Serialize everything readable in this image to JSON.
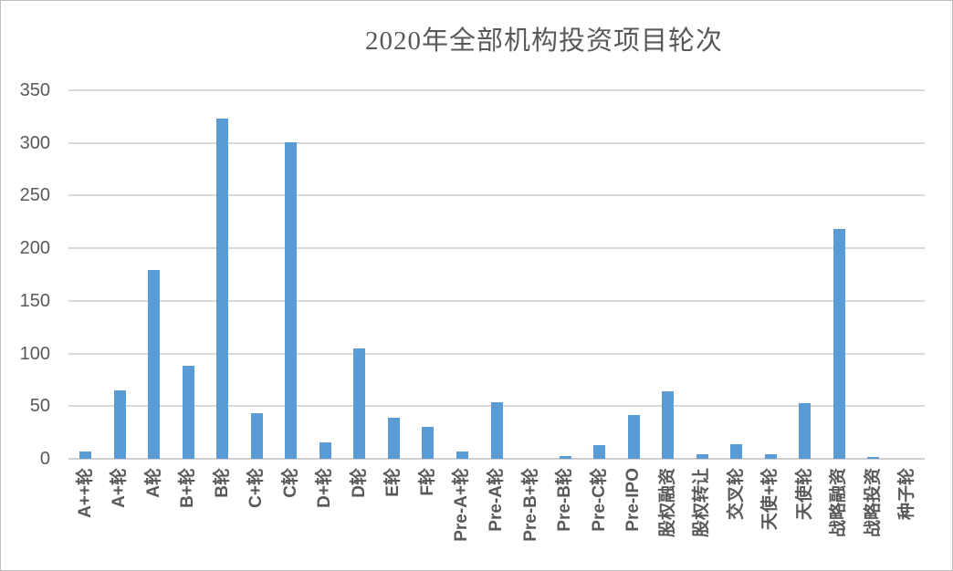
{
  "chart": {
    "title": "2020年全部机构投资项目轮次"
  },
  "chart_data": {
    "type": "bar",
    "title": "2020年全部机构投资项目轮次",
    "categories": [
      "A++轮",
      "A+轮",
      "A轮",
      "B+轮",
      "B轮",
      "C+轮",
      "C轮",
      "D+轮",
      "D轮",
      "E轮",
      "F轮",
      "Pre-A+轮",
      "Pre-A轮",
      "Pre-B+轮",
      "Pre-B轮",
      "Pre-C轮",
      "Pre-IPO",
      "股权融资",
      "股权转让",
      "交叉轮",
      "天使+轮",
      "天使轮",
      "战略融资",
      "战略投资",
      "种子轮"
    ],
    "values": [
      7,
      65,
      179,
      88,
      323,
      43,
      301,
      16,
      105,
      39,
      30,
      7,
      54,
      0,
      3,
      13,
      42,
      64,
      4,
      14,
      4,
      53,
      218,
      2,
      0
    ],
    "xlabel": "",
    "ylabel": "",
    "ylim": [
      0,
      350
    ],
    "ytick_step": 50,
    "yticks": [
      0,
      50,
      100,
      150,
      200,
      250,
      300,
      350
    ],
    "grid": true,
    "legend": false,
    "bar_color": "#5B9BD5",
    "gridline_color": "#D9D9D9",
    "axis_line_color": "#CFCFCF",
    "text_color": "#595959",
    "background": "#FFFFFF"
  }
}
